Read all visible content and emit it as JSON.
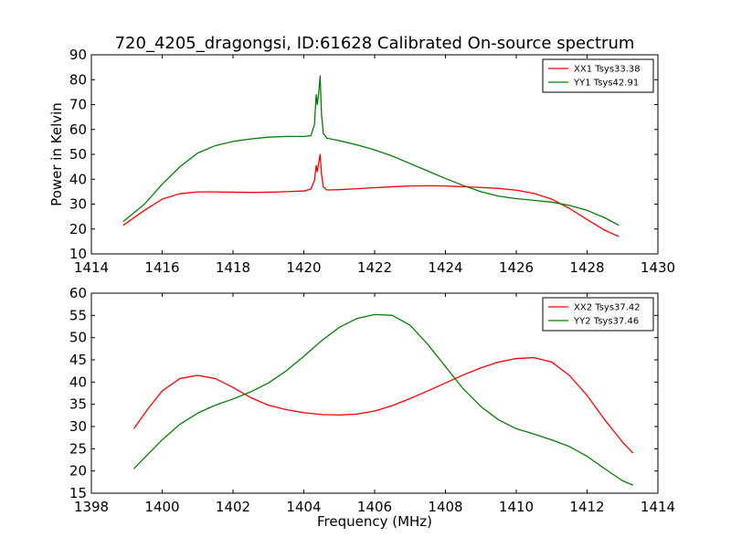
{
  "figure": {
    "title": "720_4205_dragongsi, ID:61628 Calibrated On-source spectrum",
    "ylabel": "Power in Kelvin",
    "xlabel": "Frequency (MHz)"
  },
  "chart_data": [
    {
      "type": "line",
      "title": "720_4205_dragongsi, ID:61628 Calibrated On-source spectrum",
      "xlabel": "",
      "ylabel": "Power in Kelvin",
      "xlim": [
        1414,
        1430
      ],
      "ylim": [
        10,
        90
      ],
      "xticks": [
        1414,
        1416,
        1418,
        1420,
        1422,
        1424,
        1426,
        1428,
        1430
      ],
      "yticks": [
        10,
        20,
        30,
        40,
        50,
        60,
        70,
        80,
        90
      ],
      "grid": false,
      "legend_position": "top-right",
      "series": [
        {
          "name": "XX1 Tsys33.38",
          "color": "#ff0000",
          "x": [
            1414.9,
            1415.5,
            1416.0,
            1416.5,
            1417.0,
            1417.5,
            1418.0,
            1418.5,
            1419.0,
            1419.5,
            1420.0,
            1420.2,
            1420.3,
            1420.35,
            1420.38,
            1420.42,
            1420.46,
            1420.5,
            1420.55,
            1420.65,
            1421.0,
            1421.5,
            1422.0,
            1422.5,
            1423.0,
            1423.5,
            1424.0,
            1424.5,
            1425.0,
            1425.5,
            1426.0,
            1426.5,
            1427.0,
            1427.5,
            1428.0,
            1428.5,
            1428.9
          ],
          "values": [
            21.5,
            27.5,
            32.0,
            34.2,
            34.9,
            34.9,
            34.8,
            34.7,
            34.8,
            35.0,
            35.3,
            36.0,
            39.5,
            45.5,
            43.0,
            46.5,
            50.0,
            42.0,
            37.0,
            35.7,
            35.8,
            36.2,
            36.6,
            37.0,
            37.3,
            37.4,
            37.3,
            37.0,
            36.7,
            36.3,
            35.6,
            34.3,
            32.0,
            28.3,
            23.8,
            19.5,
            17.0
          ]
        },
        {
          "name": "YY1 Tsys42.91",
          "color": "#008000",
          "x": [
            1414.9,
            1415.5,
            1416.0,
            1416.5,
            1417.0,
            1417.5,
            1418.0,
            1418.5,
            1419.0,
            1419.5,
            1420.0,
            1420.2,
            1420.3,
            1420.35,
            1420.38,
            1420.42,
            1420.46,
            1420.5,
            1420.55,
            1420.65,
            1421.0,
            1421.5,
            1422.0,
            1422.5,
            1423.0,
            1423.5,
            1424.0,
            1424.5,
            1425.0,
            1425.5,
            1426.0,
            1426.5,
            1427.0,
            1427.5,
            1428.0,
            1428.5,
            1428.9
          ],
          "values": [
            23.0,
            30.0,
            38.0,
            45.0,
            50.5,
            53.5,
            55.2,
            56.2,
            56.9,
            57.2,
            57.2,
            57.5,
            62.0,
            74.0,
            70.0,
            74.5,
            81.5,
            66.0,
            58.5,
            56.5,
            55.5,
            53.8,
            51.8,
            49.3,
            46.3,
            43.3,
            40.3,
            37.5,
            35.0,
            33.2,
            32.2,
            31.5,
            30.8,
            29.5,
            27.5,
            24.5,
            21.5
          ]
        }
      ]
    },
    {
      "type": "line",
      "title": "",
      "xlabel": "Frequency (MHz)",
      "ylabel": "",
      "xlim": [
        1398,
        1414
      ],
      "ylim": [
        15,
        60
      ],
      "xticks": [
        1398,
        1400,
        1402,
        1404,
        1406,
        1408,
        1410,
        1412,
        1414
      ],
      "yticks": [
        15,
        20,
        25,
        30,
        35,
        40,
        45,
        50,
        55,
        60
      ],
      "grid": false,
      "legend_position": "top-right",
      "series": [
        {
          "name": "XX2 Tsys37.42",
          "color": "#ff0000",
          "x": [
            1399.2,
            1399.6,
            1400.0,
            1400.5,
            1401.0,
            1401.5,
            1402.0,
            1402.5,
            1403.0,
            1403.5,
            1404.0,
            1404.5,
            1405.0,
            1405.5,
            1406.0,
            1406.5,
            1407.0,
            1407.5,
            1408.0,
            1408.5,
            1409.0,
            1409.5,
            1410.0,
            1410.5,
            1411.0,
            1411.5,
            1412.0,
            1412.5,
            1413.0,
            1413.3
          ],
          "values": [
            29.5,
            34.0,
            38.0,
            40.8,
            41.5,
            40.8,
            38.8,
            36.5,
            34.8,
            33.8,
            33.1,
            32.7,
            32.6,
            32.8,
            33.5,
            34.7,
            36.3,
            38.0,
            39.8,
            41.6,
            43.2,
            44.5,
            45.3,
            45.5,
            44.5,
            41.5,
            37.0,
            31.5,
            26.5,
            24.0
          ]
        },
        {
          "name": "YY2 Tsys37.46",
          "color": "#008000",
          "x": [
            1399.2,
            1399.6,
            1400.0,
            1400.5,
            1401.0,
            1401.5,
            1402.0,
            1402.5,
            1403.0,
            1403.5,
            1404.0,
            1404.5,
            1405.0,
            1405.5,
            1406.0,
            1406.5,
            1407.0,
            1407.5,
            1408.0,
            1408.5,
            1409.0,
            1409.5,
            1410.0,
            1410.5,
            1411.0,
            1411.5,
            1412.0,
            1412.5,
            1413.0,
            1413.3
          ],
          "values": [
            20.5,
            23.8,
            27.0,
            30.5,
            33.0,
            34.8,
            36.2,
            37.8,
            39.8,
            42.5,
            45.8,
            49.3,
            52.3,
            54.3,
            55.2,
            55.0,
            52.8,
            48.5,
            43.5,
            38.5,
            34.5,
            31.5,
            29.5,
            28.3,
            27.0,
            25.5,
            23.3,
            20.5,
            17.8,
            16.8
          ]
        }
      ]
    }
  ]
}
